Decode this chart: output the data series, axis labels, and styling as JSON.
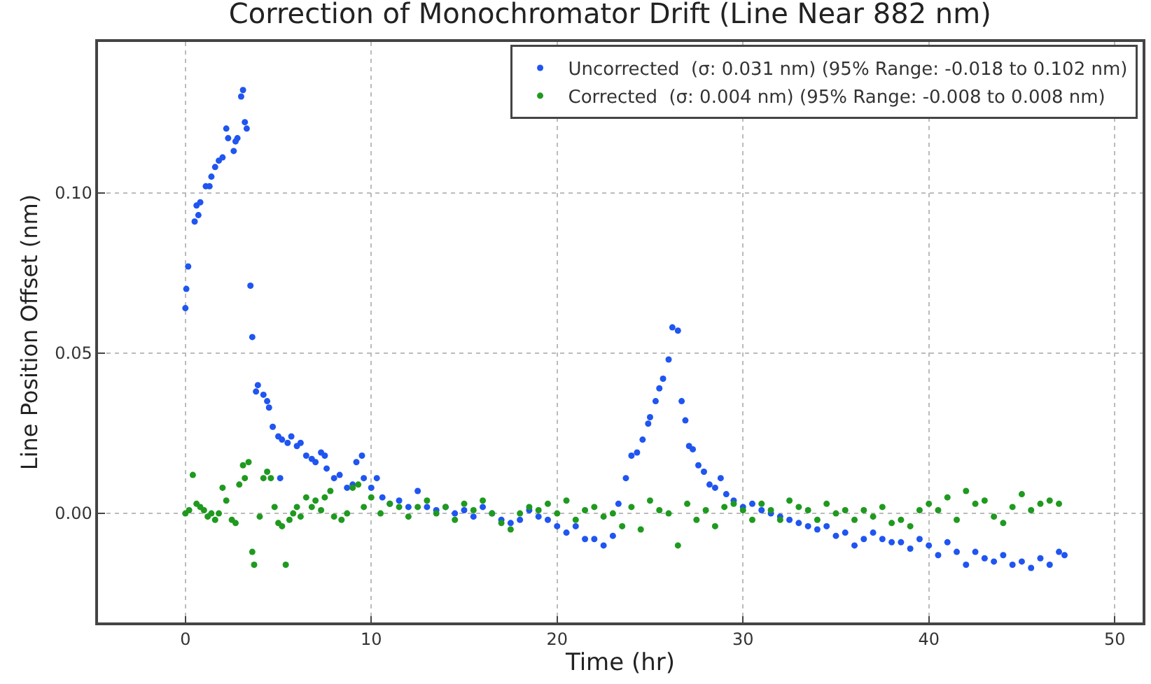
{
  "chart_data": {
    "type": "scatter",
    "title": "Correction of Monochromator Drift (Line Near 882 nm)",
    "xlabel": "Time (hr)",
    "ylabel": "Line Position Offset (nm)",
    "xlim": [
      -4.7,
      51.5
    ],
    "ylim": [
      -0.034,
      0.147
    ],
    "xticks": [
      0,
      10,
      20,
      30,
      40,
      50
    ],
    "yticks": [
      {
        "value": 0,
        "label": "0.00"
      },
      {
        "value": 0.05,
        "label": "0.05"
      },
      {
        "value": 0.1,
        "label": "0.10"
      }
    ],
    "grid": true,
    "legend": "top right",
    "marker": "circle",
    "series": [
      {
        "name": "Uncorrected  (σ: 0.031 nm) (95% Range: -0.018 to 0.102 nm)",
        "color": "#1f55f0",
        "x": [
          0,
          0.05,
          0.15,
          0.5,
          0.6,
          0.7,
          0.8,
          1.1,
          1.3,
          1.4,
          1.6,
          1.8,
          2.0,
          2.2,
          2.3,
          2.6,
          2.7,
          2.8,
          3.0,
          3.1,
          3.2,
          3.3,
          3.5,
          3.6,
          3.8,
          3.9,
          4.2,
          4.4,
          4.5,
          4.7,
          5.0,
          5.1,
          5.2,
          5.5,
          5.7,
          6.0,
          6.2,
          6.5,
          6.8,
          7.0,
          7.3,
          7.5,
          7.6,
          8.0,
          8.3,
          8.7,
          9.0,
          9.2,
          9.5,
          9.6,
          10.0,
          10.3,
          10.6,
          11,
          11.5,
          12,
          12.5,
          13,
          13.5,
          14,
          14.5,
          15,
          15.5,
          16,
          16.5,
          17,
          17.5,
          18,
          18.5,
          19,
          19.5,
          20,
          20.5,
          21,
          21.5,
          22,
          22.5,
          23,
          23.3,
          23.7,
          24,
          24.3,
          24.6,
          24.9,
          25.0,
          25.3,
          25.5,
          25.7,
          26.0,
          26.2,
          26.5,
          26.7,
          26.9,
          27.1,
          27.3,
          27.6,
          27.9,
          28.2,
          28.5,
          28.8,
          29.1,
          29.5,
          30,
          30.5,
          31,
          31.5,
          32,
          32.5,
          33,
          33.5,
          34,
          34.5,
          35,
          35.5,
          36,
          36.5,
          37,
          37.5,
          38,
          38.5,
          39,
          39.5,
          40,
          40.5,
          41,
          41.5,
          42,
          42.5,
          43,
          43.5,
          44,
          44.5,
          45,
          45.5,
          46,
          46.5,
          47,
          47.3
        ],
        "values": [
          0.064,
          0.07,
          0.077,
          0.091,
          0.096,
          0.093,
          0.097,
          0.102,
          0.102,
          0.105,
          0.108,
          0.11,
          0.111,
          0.12,
          0.117,
          0.113,
          0.116,
          0.117,
          0.13,
          0.132,
          0.122,
          0.12,
          0.071,
          0.055,
          0.038,
          0.04,
          0.037,
          0.035,
          0.033,
          0.027,
          0.024,
          0.011,
          0.023,
          0.022,
          0.024,
          0.021,
          0.022,
          0.018,
          0.017,
          0.016,
          0.019,
          0.018,
          0.014,
          0.011,
          0.012,
          0.008,
          0.009,
          0.016,
          0.018,
          0.011,
          0.008,
          0.011,
          0.005,
          0.003,
          0.004,
          0.002,
          0.007,
          0.002,
          0.001,
          0.002,
          0.0,
          0.001,
          -0.001,
          0.002,
          0.0,
          -0.002,
          -0.003,
          -0.002,
          0.001,
          -0.001,
          -0.002,
          -0.004,
          -0.006,
          -0.004,
          -0.008,
          -0.008,
          -0.01,
          -0.007,
          0.003,
          0.011,
          0.018,
          0.019,
          0.023,
          0.028,
          0.03,
          0.035,
          0.039,
          0.042,
          0.048,
          0.058,
          0.057,
          0.035,
          0.029,
          0.021,
          0.02,
          0.015,
          0.013,
          0.009,
          0.008,
          0.011,
          0.006,
          0.004,
          0.002,
          0.003,
          0.001,
          0.0,
          -0.001,
          -0.002,
          -0.003,
          -0.004,
          -0.005,
          -0.004,
          -0.007,
          -0.006,
          -0.01,
          -0.008,
          -0.006,
          -0.008,
          -0.009,
          -0.009,
          -0.011,
          -0.008,
          -0.01,
          -0.013,
          -0.009,
          -0.012,
          -0.016,
          -0.012,
          -0.014,
          -0.015,
          -0.013,
          -0.016,
          -0.015,
          -0.017,
          -0.014,
          -0.016,
          -0.012,
          -0.013
        ]
      },
      {
        "name": "Corrected  (σ: 0.004 nm) (95% Range: -0.008 to 0.008 nm)",
        "color": "#1f9a1f",
        "x": [
          0,
          0.2,
          0.4,
          0.6,
          0.8,
          1.0,
          1.2,
          1.4,
          1.6,
          1.8,
          2.0,
          2.2,
          2.5,
          2.7,
          2.9,
          3.1,
          3.2,
          3.4,
          3.6,
          3.7,
          4.0,
          4.2,
          4.4,
          4.6,
          4.8,
          5.0,
          5.2,
          5.4,
          5.6,
          5.8,
          6.0,
          6.2,
          6.5,
          6.8,
          7.0,
          7.3,
          7.5,
          7.8,
          8.0,
          8.4,
          8.7,
          9.0,
          9.3,
          9.6,
          10,
          10.5,
          11,
          11.5,
          12,
          12.5,
          13,
          13.5,
          14,
          14.5,
          15,
          15.5,
          16,
          16.5,
          17,
          17.5,
          18,
          18.5,
          19,
          19.5,
          20,
          20.5,
          21,
          21.5,
          22,
          22.5,
          23,
          23.5,
          24,
          24.5,
          25,
          25.5,
          26,
          26.5,
          27,
          27.5,
          28,
          28.5,
          29,
          29.5,
          30,
          30.5,
          31,
          31.5,
          32,
          32.5,
          33,
          33.5,
          34,
          34.5,
          35,
          35.5,
          36,
          36.5,
          37,
          37.5,
          38,
          38.5,
          39,
          39.5,
          40,
          40.5,
          41,
          41.5,
          42,
          42.5,
          43,
          43.5,
          44,
          44.5,
          45,
          45.5,
          46,
          46.5,
          47
        ],
        "values": [
          0.0,
          0.001,
          0.012,
          0.003,
          0.002,
          0.001,
          -0.001,
          0.0,
          -0.002,
          0.0,
          0.008,
          0.004,
          -0.002,
          -0.003,
          0.009,
          0.015,
          0.011,
          0.016,
          -0.012,
          -0.016,
          -0.001,
          0.011,
          0.013,
          0.011,
          0.002,
          -0.003,
          -0.004,
          -0.016,
          -0.002,
          0.0,
          0.002,
          -0.001,
          0.005,
          0.002,
          0.004,
          0.001,
          0.005,
          0.007,
          -0.001,
          -0.002,
          0.0,
          0.008,
          0.009,
          0.002,
          0.005,
          0.0,
          0.003,
          0.002,
          -0.001,
          0.002,
          0.004,
          0.0,
          0.002,
          -0.002,
          0.003,
          0.001,
          0.004,
          0.0,
          -0.003,
          -0.005,
          0.0,
          0.002,
          0.001,
          0.003,
          0.0,
          0.004,
          -0.002,
          0.001,
          0.002,
          -0.001,
          0.0,
          -0.004,
          0.002,
          -0.005,
          0.004,
          0.001,
          0.0,
          -0.01,
          0.003,
          -0.002,
          0.001,
          -0.004,
          0.002,
          0.003,
          0.001,
          -0.002,
          0.003,
          0.001,
          -0.002,
          0.004,
          0.002,
          0.001,
          -0.002,
          0.003,
          0.0,
          0.001,
          -0.002,
          0.001,
          -0.001,
          0.002,
          -0.003,
          -0.002,
          -0.004,
          0.001,
          0.003,
          0.001,
          0.005,
          -0.002,
          0.007,
          0.003,
          0.004,
          -0.001,
          -0.003,
          0.002,
          0.006,
          0.001,
          0.003,
          0.004,
          0.003
        ]
      }
    ]
  }
}
